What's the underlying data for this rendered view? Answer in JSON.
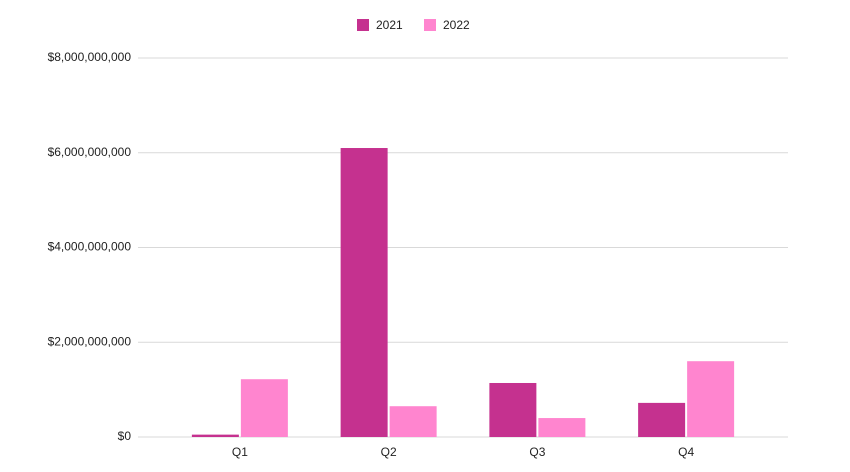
{
  "chart_data": {
    "type": "bar",
    "categories": [
      "Q1",
      "Q2",
      "Q3",
      "Q4"
    ],
    "series": [
      {
        "name": "2021",
        "color": "#c5318f",
        "values": [
          50000000,
          6100000000,
          1140000000,
          720000000
        ]
      },
      {
        "name": "2022",
        "color": "#ff85cf",
        "values": [
          1220000000,
          650000000,
          400000000,
          1600000000
        ]
      }
    ],
    "ylim": [
      0,
      8000000000
    ],
    "yticks": [
      {
        "value": 0,
        "label": "$0"
      },
      {
        "value": 2000000000,
        "label": "$2,000,000,000"
      },
      {
        "value": 4000000000,
        "label": "$4,000,000,000"
      },
      {
        "value": 6000000000,
        "label": "$6,000,000,000"
      },
      {
        "value": 8000000000,
        "label": "$8,000,000,000"
      }
    ],
    "grid": true,
    "legend": "top"
  }
}
